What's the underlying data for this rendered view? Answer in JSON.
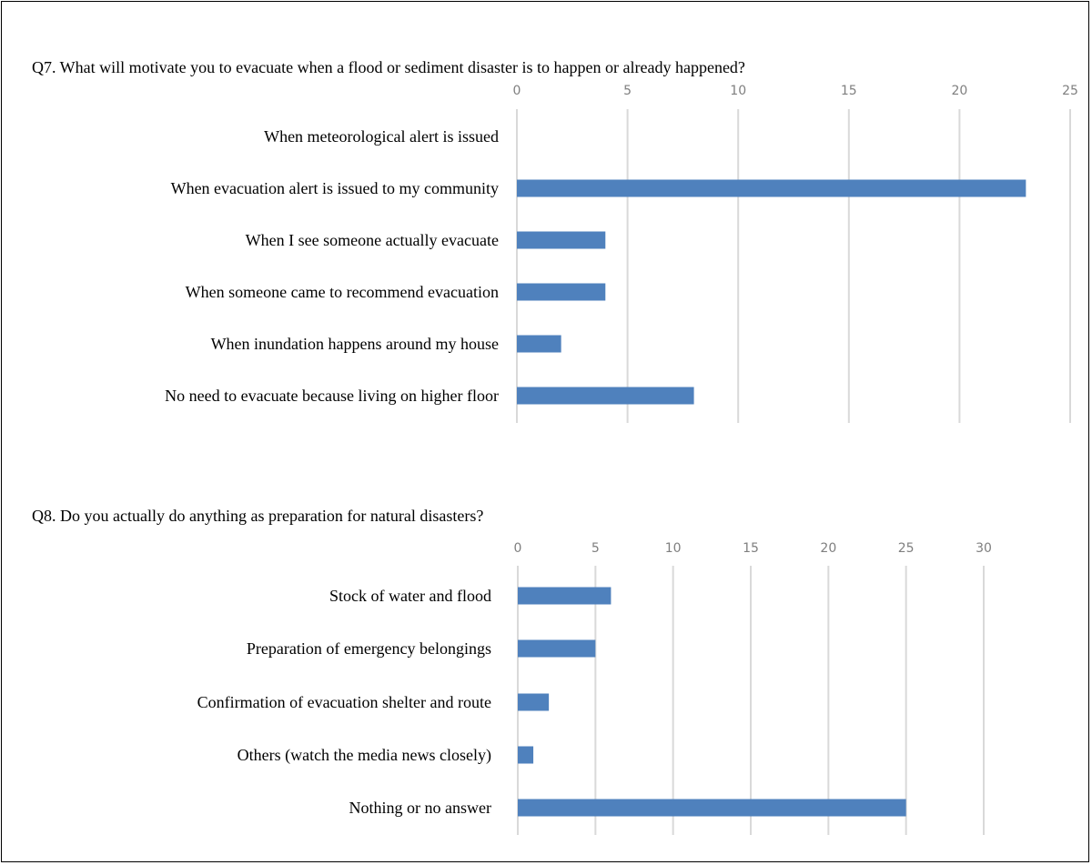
{
  "colors": {
    "bar": "#4F81BD",
    "grid": "#d9d9d9",
    "tick_text": "#7f7f7f"
  },
  "chart_data": [
    {
      "type": "bar",
      "orientation": "horizontal",
      "title": "Q7. What will motivate you to evacuate when a flood or sediment disaster is to happen or already happened?",
      "categories": [
        "When meteorological alert is issued",
        "When evacuation alert is issued to my community",
        "When I see someone actually evacuate",
        "When someone came to recommend evacuation",
        "When inundation happens around my house",
        "No need to evacuate because living on higher floor"
      ],
      "values": [
        0,
        23,
        4,
        4,
        2,
        8
      ],
      "xlim": [
        0,
        25
      ],
      "ticks": [
        "0",
        "5",
        "10",
        "15",
        "20",
        "25"
      ],
      "axis_position": "top",
      "grid": true
    },
    {
      "type": "bar",
      "orientation": "horizontal",
      "title": "Q8. Do you actually do anything as preparation for natural disasters?",
      "categories": [
        "Stock of water and flood",
        "Preparation of emergency belongings",
        "Confirmation of evacuation shelter and route",
        "Others (watch the media news closely)",
        "Nothing or no answer"
      ],
      "values": [
        6,
        5,
        2,
        1,
        25
      ],
      "xlim": [
        0,
        30
      ],
      "ticks": [
        "0",
        "5",
        "10",
        "15",
        "20",
        "25",
        "30"
      ],
      "axis_position": "top",
      "grid": true
    }
  ]
}
